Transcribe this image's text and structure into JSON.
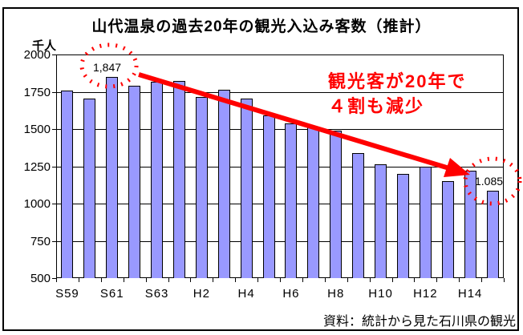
{
  "chart": {
    "title": "山代温泉の過去20年の観光入込み客数（推計）",
    "y_unit": "千人",
    "source": "資料：統計から見た石川県の観光",
    "annotation": {
      "line1": "観光客が20年で",
      "line2": "４割も減少",
      "first_value_label": "1,847",
      "last_value_label": "1.085"
    },
    "colors": {
      "bar_fill": "#9999FF",
      "bar_border": "#000000",
      "annotation_red": "#FF0000",
      "axis": "#000000",
      "background": "#FFFFFF"
    }
  },
  "chart_data": {
    "type": "bar",
    "title": "山代温泉の過去20年の観光入込み客数（推計）",
    "ylabel": "千人",
    "ylim": [
      500,
      2000
    ],
    "y_ticks": [
      2000,
      1750,
      1500,
      1250,
      1000,
      750,
      500
    ],
    "grid": true,
    "legend": "none",
    "categories": [
      "S59",
      "S60",
      "S61",
      "S62",
      "S63",
      "H1",
      "H2",
      "H3",
      "H4",
      "H5",
      "H6",
      "H7",
      "H8",
      "H9",
      "H10",
      "H11",
      "H12",
      "H13",
      "H14",
      "H15"
    ],
    "values": [
      1760,
      1705,
      1847,
      1790,
      1815,
      1820,
      1715,
      1765,
      1705,
      1590,
      1540,
      1510,
      1490,
      1340,
      1265,
      1200,
      1245,
      1150,
      1220,
      1085
    ],
    "x_tick_labels_shown": [
      "S59",
      "S61",
      "S63",
      "H2",
      "H4",
      "H6",
      "H8",
      "H10",
      "H12",
      "H14"
    ],
    "data_labels": [
      {
        "category": "S61",
        "text": "1,847"
      },
      {
        "category": "H15",
        "text": "1.085"
      }
    ],
    "annotations": [
      {
        "type": "text",
        "text": "観光客が20年で 4割も減少",
        "color": "#FF0000"
      },
      {
        "type": "dotted-ellipse",
        "around": "S61 value label",
        "color": "#FF0000"
      },
      {
        "type": "dotted-ellipse",
        "around": "H15 value label",
        "color": "#FF0000"
      },
      {
        "type": "arrow",
        "from": "S61 peak",
        "to": "H14 bar top",
        "color": "#FF0000"
      }
    ]
  }
}
